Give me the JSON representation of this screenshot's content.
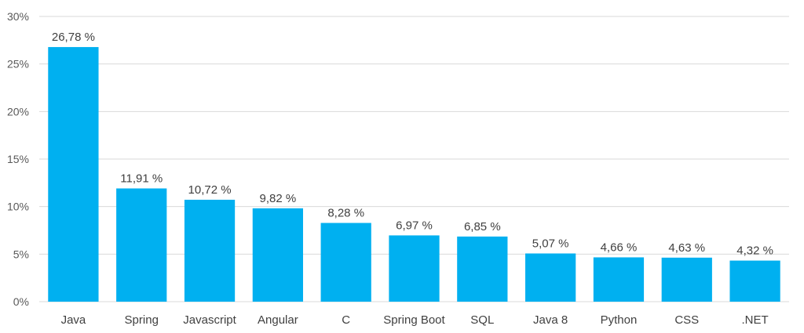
{
  "chart_data": {
    "type": "bar",
    "categories": [
      "Java",
      "Spring",
      "Javascript",
      "Angular",
      "C",
      "Spring Boot",
      "SQL",
      "Java 8",
      "Python",
      "CSS",
      ".NET"
    ],
    "values": [
      26.78,
      11.91,
      10.72,
      9.82,
      8.28,
      6.97,
      6.85,
      5.07,
      4.66,
      4.63,
      4.32
    ],
    "data_labels": [
      "26,78 %",
      "11,91 %",
      "10,72 %",
      "9,82 %",
      "8,28 %",
      "6,97 %",
      "6,85 %",
      "5,07 %",
      "4,66 %",
      "4,63 %",
      "4,32 %"
    ],
    "yticks": [
      0,
      5,
      10,
      15,
      20,
      25,
      30
    ],
    "ytick_labels": [
      "0%",
      "5%",
      "10%",
      "15%",
      "20%",
      "25%",
      "30%"
    ],
    "ylim": [
      0,
      30
    ],
    "title": "",
    "xlabel": "",
    "ylabel": "",
    "grid": true,
    "legend": "none",
    "bar_color": "#00b0f0",
    "grid_color": "#d9d9d9"
  }
}
